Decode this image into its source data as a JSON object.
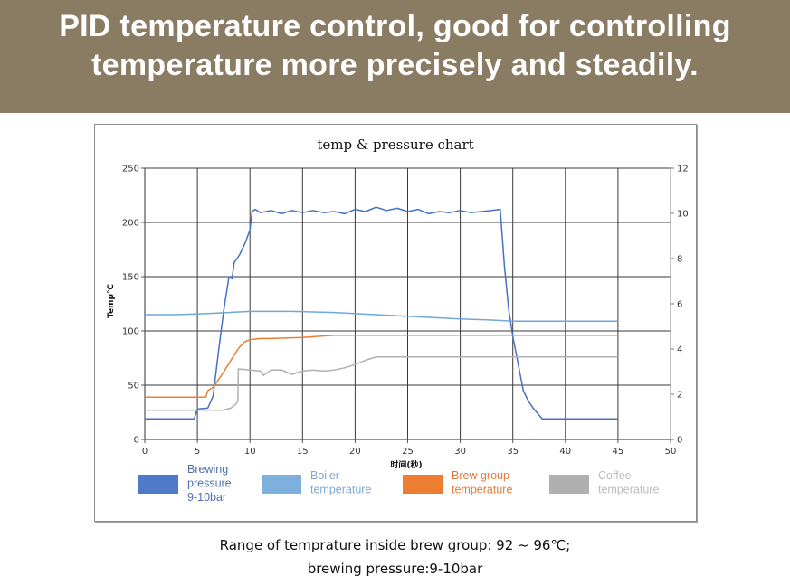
{
  "banner": {
    "line1": "PID temperature control, good for controlling",
    "line2": "temperature more precisely and steadily."
  },
  "caption": {
    "line1": "Range of temprature inside brew group: 92 ~ 96℃;",
    "line2": "brewing pressure:9-10bar"
  },
  "chart_data": {
    "type": "line",
    "title": "temp & pressure chart",
    "xlabel": "时间(秒)",
    "ylabel": "Temp℃",
    "y2label": "",
    "xlim": [
      0,
      50
    ],
    "ylim": [
      0,
      250
    ],
    "y2lim": [
      0,
      12
    ],
    "xticks": [
      "0",
      "5",
      "10",
      "15",
      "20",
      "25",
      "30",
      "35",
      "40",
      "45",
      "50"
    ],
    "yticks": [
      "0",
      "50",
      "100",
      "150",
      "200",
      "250"
    ],
    "y2ticks": [
      "0",
      "2",
      "4",
      "6",
      "8",
      "10",
      "12"
    ],
    "grid": true,
    "legend_position": "bottom",
    "series": [
      {
        "name": "Brewing pressure 9-10bar",
        "legend_lines": [
          "Brewing",
          "pressure",
          "9-10bar"
        ],
        "color": "#4472c4",
        "legend_color": "#4f7ac7",
        "text_color": "#4f6fae",
        "axis": "left",
        "x": [
          0,
          4.7,
          5,
          6,
          6.5,
          7,
          7.5,
          8,
          8.3,
          8.5,
          9,
          9.5,
          10,
          10.2,
          10.5,
          11,
          12,
          13,
          14,
          15,
          16,
          17,
          18,
          19,
          20,
          21,
          22,
          23,
          24,
          25,
          26,
          27,
          28,
          29,
          30,
          31,
          32,
          33,
          33.8,
          34.2,
          34.6,
          35,
          35.5,
          36,
          36.5,
          37,
          37.8,
          40,
          45
        ],
        "y": [
          19,
          19,
          28,
          29,
          40,
          80,
          118,
          150,
          148,
          163,
          170,
          180,
          193,
          210,
          212,
          209,
          211,
          208,
          211,
          209,
          211,
          209,
          210,
          208,
          212,
          210,
          214,
          211,
          213,
          210,
          212,
          208,
          210,
          209,
          211,
          209,
          210,
          211,
          212,
          160,
          120,
          95,
          70,
          45,
          35,
          28,
          19,
          19,
          19
        ]
      },
      {
        "name": "Boiler temperature",
        "legend_lines": [
          "Boiler",
          "temperature"
        ],
        "color": "#6fa8dc",
        "legend_color": "#7eb0dd",
        "text_color": "#7ea8d2",
        "axis": "left",
        "x": [
          0,
          3,
          6,
          10,
          14,
          18,
          22,
          26,
          30,
          33,
          35,
          38,
          45
        ],
        "y": [
          115,
          115,
          116,
          118,
          118,
          117,
          115,
          113,
          111,
          110,
          109,
          109,
          109
        ]
      },
      {
        "name": "Brew group temperature",
        "legend_lines": [
          "Brew group",
          "temperature"
        ],
        "color": "#ed7d31",
        "legend_color": "#ed7d31",
        "text_color": "#e07b39",
        "axis": "left",
        "x": [
          0,
          5.8,
          6,
          6.5,
          7,
          7.5,
          8,
          8.5,
          9,
          9.5,
          10,
          11,
          12,
          15,
          18,
          20,
          25,
          30,
          35,
          40,
          45
        ],
        "y": [
          39,
          39,
          45,
          48,
          55,
          62,
          70,
          78,
          85,
          90,
          92,
          93,
          93,
          94,
          96,
          96,
          96,
          96,
          96,
          96,
          96
        ]
      },
      {
        "name": "Coffee temperature",
        "legend_lines": [
          "Coffee",
          "temperature"
        ],
        "color": "#b0b0b0",
        "legend_color": "#b0b0b0",
        "text_color": "#bcbcbc",
        "axis": "left",
        "x": [
          0,
          7.5,
          8.2,
          8.7,
          8.85,
          8.9,
          10,
          11,
          11.3,
          12,
          13,
          14,
          15,
          16,
          17,
          18,
          19,
          20,
          21,
          22,
          25,
          30,
          35,
          40,
          45
        ],
        "y": [
          27,
          27,
          29,
          33,
          35,
          65,
          64,
          63,
          59,
          64,
          64,
          60,
          63,
          64,
          63,
          64,
          66,
          69,
          73,
          76,
          76,
          76,
          76,
          76,
          76
        ]
      }
    ]
  }
}
